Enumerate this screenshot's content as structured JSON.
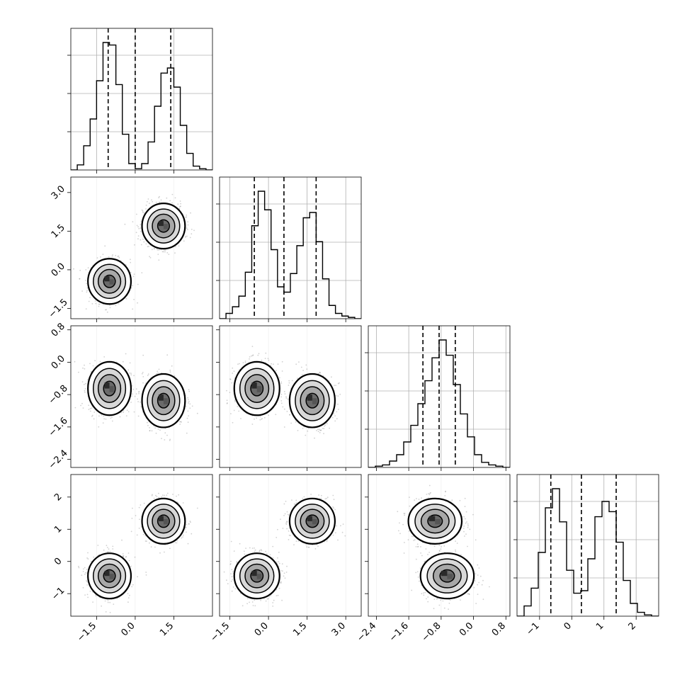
{
  "chart_data": {
    "type": "corner",
    "ndim": 4,
    "axis_ticks": [
      [
        -1.5,
        0.0,
        1.5
      ],
      [
        -1.5,
        0.0,
        1.5,
        3.0
      ],
      [
        -2.4,
        -1.6,
        -0.8,
        0.0,
        0.8
      ],
      [
        -1,
        0,
        1,
        2
      ]
    ],
    "axis_tick_labels": [
      [
        "−1.5",
        "0.0",
        "1.5"
      ],
      [
        "−1.5",
        "0.0",
        "1.5",
        "3.0"
      ],
      [
        "−2.4",
        "−1.6",
        "−0.8",
        "0.0",
        "0.8"
      ],
      [
        "−1",
        "0",
        "1",
        "2"
      ]
    ],
    "axis_ranges": [
      [
        -2.5,
        3.0
      ],
      [
        -1.9,
        3.6
      ],
      [
        -2.6,
        0.9
      ],
      [
        -1.7,
        2.7
      ]
    ],
    "grid": true,
    "histograms": [
      {
        "bin_edges": [
          -2.5,
          -2.25,
          -2.0,
          -1.75,
          -1.5,
          -1.25,
          -1.0,
          -0.75,
          -0.5,
          -0.25,
          0.0,
          0.25,
          0.5,
          0.75,
          1.0,
          1.25,
          1.5,
          1.75,
          2.0,
          2.25,
          2.5,
          2.75,
          3.0
        ],
        "counts": [
          0,
          0.04,
          0.19,
          0.4,
          0.7,
          1.0,
          0.98,
          0.67,
          0.28,
          0.05,
          0.01,
          0.05,
          0.22,
          0.5,
          0.76,
          0.8,
          0.65,
          0.35,
          0.13,
          0.03,
          0.01,
          0
        ],
        "quantiles": [
          -1.05,
          0.0,
          1.38
        ]
      },
      {
        "bin_edges": [
          -1.9,
          -1.65,
          -1.4,
          -1.15,
          -0.9,
          -0.65,
          -0.4,
          -0.15,
          0.1,
          0.35,
          0.6,
          0.85,
          1.1,
          1.35,
          1.6,
          1.85,
          2.1,
          2.35,
          2.6,
          2.85,
          3.1,
          3.35,
          3.6
        ],
        "counts": [
          0,
          0.04,
          0.09,
          0.17,
          0.35,
          0.7,
          0.96,
          0.82,
          0.52,
          0.24,
          0.2,
          0.34,
          0.55,
          0.76,
          0.8,
          0.58,
          0.3,
          0.1,
          0.04,
          0.02,
          0.01,
          0
        ],
        "quantiles": [
          -0.55,
          0.6,
          1.85
        ]
      },
      {
        "bin_edges": [
          -2.6,
          -2.425,
          -2.25,
          -2.075,
          -1.9,
          -1.725,
          -1.55,
          -1.375,
          -1.2,
          -1.025,
          -0.85,
          -0.675,
          -0.5,
          -0.325,
          -0.15,
          0.025,
          0.2,
          0.375,
          0.55,
          0.725,
          0.9
        ],
        "counts": [
          0,
          0.01,
          0.02,
          0.05,
          0.1,
          0.2,
          0.33,
          0.5,
          0.68,
          0.86,
          1.0,
          0.88,
          0.65,
          0.42,
          0.24,
          0.1,
          0.04,
          0.02,
          0.01,
          0
        ],
        "quantiles": [
          -1.25,
          -0.85,
          -0.45
        ]
      },
      {
        "bin_edges": [
          -1.7,
          -1.48,
          -1.26,
          -1.04,
          -0.82,
          -0.6,
          -0.38,
          -0.16,
          0.06,
          0.28,
          0.5,
          0.72,
          0.94,
          1.16,
          1.38,
          1.6,
          1.82,
          2.04,
          2.26,
          2.48,
          2.7
        ],
        "counts": [
          0,
          0.08,
          0.22,
          0.5,
          0.85,
          1.0,
          0.74,
          0.36,
          0.18,
          0.2,
          0.45,
          0.78,
          0.9,
          0.82,
          0.58,
          0.28,
          0.1,
          0.03,
          0.01,
          0
        ],
        "quantiles": [
          -0.65,
          0.3,
          1.38
        ]
      }
    ],
    "blob_components": [
      [
        -1.0,
        -0.45,
        -0.65,
        -0.45
      ],
      [
        1.1,
        1.7,
        -0.95,
        1.25
      ]
    ],
    "blob_widths": [
      0.38,
      0.4,
      0.3,
      0.32
    ]
  }
}
